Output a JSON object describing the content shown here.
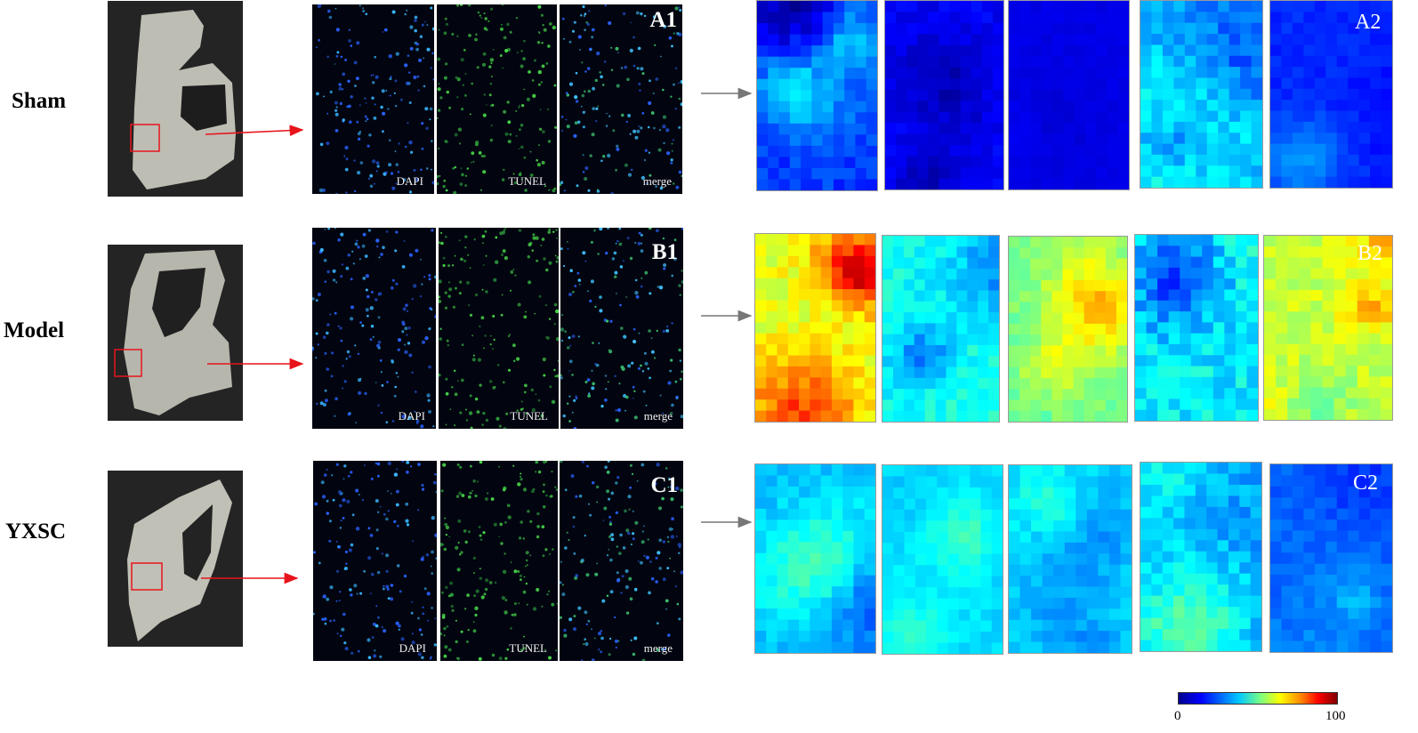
{
  "rows": [
    {
      "label": "Sham",
      "panel1": "A1",
      "panel2": "A2"
    },
    {
      "label": "Model",
      "panel1": "B1",
      "panel2": "B2"
    },
    {
      "label": "YXSC",
      "panel1": "C1",
      "panel2": "C2"
    }
  ],
  "channels": [
    "DAPI",
    "TUNEL",
    "merge"
  ],
  "colorbar": {
    "min": "0",
    "max": "100"
  },
  "colors": {
    "dapi": "#2a7dff",
    "tunel": "#3bd14a",
    "arrow_red": "#e8141c",
    "arrow_gray": "#777777"
  }
}
